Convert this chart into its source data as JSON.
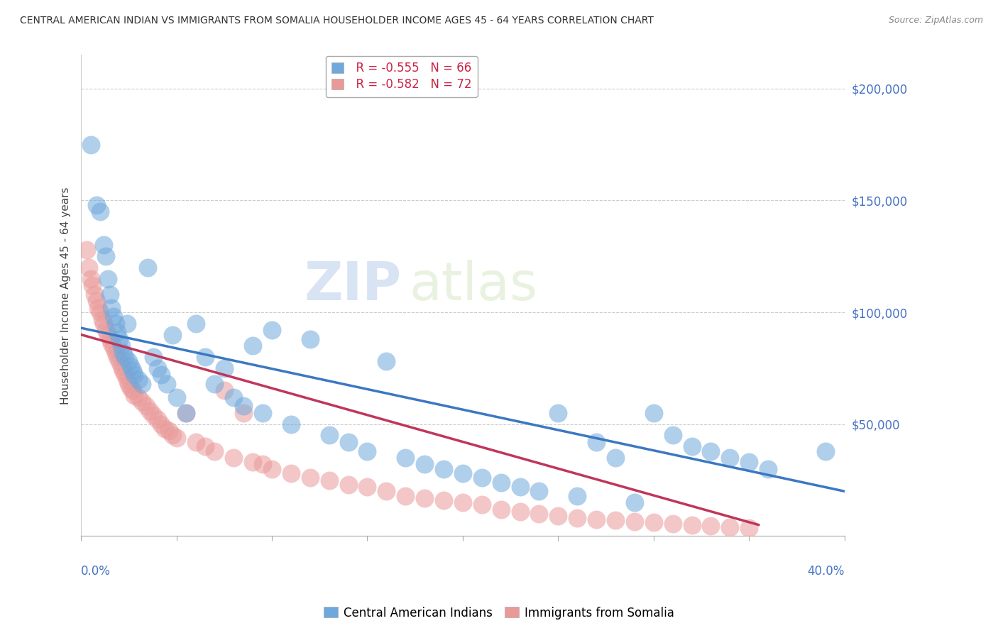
{
  "title": "CENTRAL AMERICAN INDIAN VS IMMIGRANTS FROM SOMALIA HOUSEHOLDER INCOME AGES 45 - 64 YEARS CORRELATION CHART",
  "source": "Source: ZipAtlas.com",
  "ylabel": "Householder Income Ages 45 - 64 years",
  "xlim": [
    0.0,
    0.4
  ],
  "ylim": [
    0,
    215000
  ],
  "legend_blue_r": "R = -0.555",
  "legend_blue_n": "N = 66",
  "legend_pink_r": "R = -0.582",
  "legend_pink_n": "N = 72",
  "blue_color": "#6fa8dc",
  "pink_color": "#ea9999",
  "blue_line_color": "#3b78c3",
  "pink_line_color": "#c0365a",
  "watermark_zip": "ZIP",
  "watermark_atlas": "atlas",
  "blue_scatter_x": [
    0.005,
    0.008,
    0.01,
    0.012,
    0.013,
    0.014,
    0.015,
    0.016,
    0.017,
    0.018,
    0.019,
    0.02,
    0.021,
    0.022,
    0.023,
    0.024,
    0.025,
    0.026,
    0.027,
    0.028,
    0.03,
    0.032,
    0.035,
    0.038,
    0.04,
    0.042,
    0.045,
    0.048,
    0.05,
    0.055,
    0.06,
    0.065,
    0.07,
    0.075,
    0.08,
    0.085,
    0.09,
    0.095,
    0.1,
    0.11,
    0.12,
    0.13,
    0.14,
    0.15,
    0.16,
    0.17,
    0.18,
    0.19,
    0.2,
    0.21,
    0.22,
    0.23,
    0.24,
    0.25,
    0.26,
    0.27,
    0.28,
    0.29,
    0.3,
    0.31,
    0.32,
    0.33,
    0.34,
    0.35,
    0.36,
    0.39
  ],
  "blue_scatter_y": [
    175000,
    148000,
    145000,
    130000,
    125000,
    115000,
    108000,
    102000,
    98000,
    95000,
    91000,
    88000,
    85000,
    82000,
    80000,
    95000,
    78000,
    76000,
    74000,
    72000,
    70000,
    68000,
    120000,
    80000,
    75000,
    72000,
    68000,
    90000,
    62000,
    55000,
    95000,
    80000,
    68000,
    75000,
    62000,
    58000,
    85000,
    55000,
    92000,
    50000,
    88000,
    45000,
    42000,
    38000,
    78000,
    35000,
    32000,
    30000,
    28000,
    26000,
    24000,
    22000,
    20000,
    55000,
    18000,
    42000,
    35000,
    15000,
    55000,
    45000,
    40000,
    38000,
    35000,
    33000,
    30000,
    38000
  ],
  "pink_scatter_x": [
    0.003,
    0.004,
    0.005,
    0.006,
    0.007,
    0.008,
    0.009,
    0.01,
    0.011,
    0.012,
    0.013,
    0.014,
    0.015,
    0.016,
    0.017,
    0.018,
    0.019,
    0.02,
    0.021,
    0.022,
    0.023,
    0.024,
    0.025,
    0.026,
    0.027,
    0.028,
    0.03,
    0.032,
    0.034,
    0.036,
    0.038,
    0.04,
    0.042,
    0.044,
    0.046,
    0.048,
    0.05,
    0.055,
    0.06,
    0.065,
    0.07,
    0.075,
    0.08,
    0.085,
    0.09,
    0.095,
    0.1,
    0.11,
    0.12,
    0.13,
    0.14,
    0.15,
    0.16,
    0.17,
    0.18,
    0.19,
    0.2,
    0.21,
    0.22,
    0.23,
    0.24,
    0.25,
    0.26,
    0.27,
    0.28,
    0.29,
    0.3,
    0.31,
    0.32,
    0.33,
    0.34,
    0.35
  ],
  "pink_scatter_y": [
    128000,
    120000,
    115000,
    112000,
    108000,
    105000,
    102000,
    100000,
    97000,
    95000,
    92000,
    90000,
    88000,
    86000,
    84000,
    82000,
    80000,
    78000,
    76000,
    74000,
    72000,
    70000,
    68000,
    66000,
    65000,
    63000,
    62000,
    60000,
    58000,
    56000,
    54000,
    52000,
    50000,
    48000,
    47000,
    45000,
    44000,
    55000,
    42000,
    40000,
    38000,
    65000,
    35000,
    55000,
    33000,
    32000,
    30000,
    28000,
    26000,
    25000,
    23000,
    22000,
    20000,
    18000,
    17000,
    16000,
    15000,
    14000,
    12000,
    11000,
    10000,
    9000,
    8000,
    7500,
    7000,
    6500,
    6000,
    5500,
    5000,
    4500,
    4000,
    3500
  ],
  "blue_line_x0": 0.0,
  "blue_line_y0": 93000,
  "blue_line_x1": 0.4,
  "blue_line_y1": 20000,
  "pink_line_x0": 0.0,
  "pink_line_y0": 90000,
  "pink_line_x1": 0.355,
  "pink_line_y1": 5000
}
